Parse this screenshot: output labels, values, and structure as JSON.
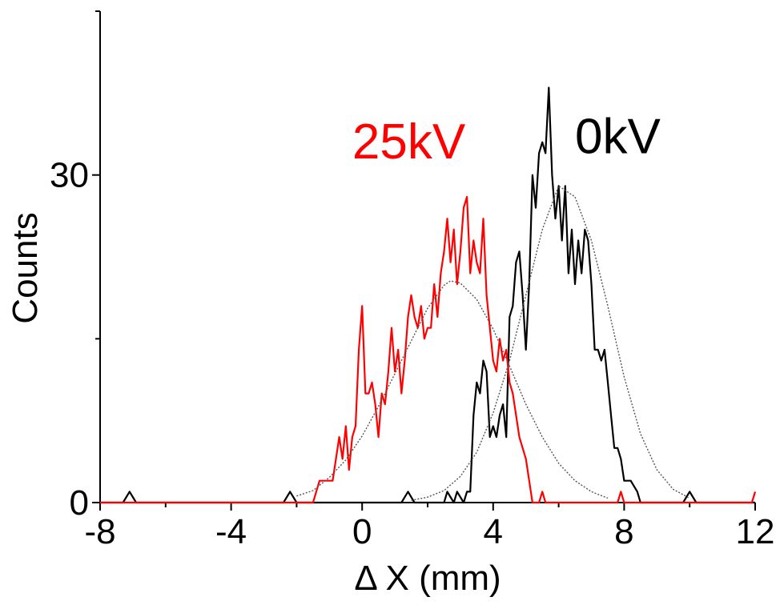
{
  "chart_data": {
    "type": "line",
    "title": "",
    "xlabel": "Δ X (mm)",
    "ylabel": "Counts",
    "xlim": [
      -8,
      12
    ],
    "ylim": [
      0,
      45
    ],
    "x_ticks": [
      -8,
      -4,
      0,
      4,
      8,
      12
    ],
    "y_ticks": [
      0,
      30
    ],
    "y_minor_ticks": [
      15,
      45
    ],
    "grid": false,
    "annotations": [
      {
        "text": "25kV",
        "color": "#ff0000",
        "x": -0.3,
        "y": 31.5
      },
      {
        "text": "0kV",
        "color": "#000000",
        "x": 6.5,
        "y": 32.0
      }
    ],
    "series": [
      {
        "color": "#000000",
        "style": "solid",
        "x": [
          -8.0,
          -7.3,
          -7.1,
          -6.9,
          -2.4,
          -2.2,
          -2.0,
          1.2,
          1.4,
          1.6,
          2.5,
          2.6,
          2.8,
          2.9,
          3.1,
          3.2,
          3.3,
          3.4,
          3.5,
          3.6,
          3.7,
          3.8,
          3.9,
          4.0,
          4.1,
          4.2,
          4.3,
          4.4,
          4.5,
          4.6,
          4.7,
          4.8,
          4.9,
          5.0,
          5.1,
          5.2,
          5.3,
          5.4,
          5.5,
          5.6,
          5.7,
          5.8,
          5.9,
          6.0,
          6.1,
          6.2,
          6.3,
          6.4,
          6.5,
          6.6,
          6.7,
          6.8,
          6.9,
          7.0,
          7.1,
          7.2,
          7.3,
          7.4,
          7.5,
          7.6,
          7.7,
          7.8,
          7.9,
          8.0,
          8.2,
          8.4,
          8.5,
          8.6,
          8.7,
          8.8,
          8.9,
          9.8,
          10.0,
          10.2,
          11.8,
          12.0
        ],
        "y": [
          0,
          0,
          1,
          0,
          0,
          1,
          0,
          0,
          1,
          0,
          0,
          1,
          0,
          1,
          0,
          1,
          1,
          8,
          11,
          10,
          13,
          12,
          6,
          7,
          6,
          8,
          9,
          6,
          17,
          18,
          22,
          23,
          19,
          14,
          20,
          30,
          27,
          32,
          33,
          32,
          38,
          30,
          26,
          29,
          24,
          29,
          21,
          25,
          20,
          24,
          21,
          25,
          24,
          20,
          14,
          14,
          13,
          14,
          11,
          8,
          5,
          5,
          4,
          2,
          2,
          1,
          0,
          0,
          0,
          0,
          0,
          0,
          1,
          0,
          0,
          0
        ]
      },
      {
        "color": "#ff0000",
        "style": "solid",
        "x": [
          -8.0,
          -1.6,
          -1.5,
          -1.4,
          -1.3,
          -1.2,
          -1.1,
          -1.0,
          -0.9,
          -0.8,
          -0.7,
          -0.6,
          -0.5,
          -0.4,
          -0.3,
          -0.2,
          -0.1,
          0.0,
          0.1,
          0.2,
          0.3,
          0.4,
          0.5,
          0.6,
          0.7,
          0.8,
          0.9,
          1.0,
          1.1,
          1.2,
          1.3,
          1.4,
          1.5,
          1.6,
          1.7,
          1.8,
          1.9,
          2.0,
          2.1,
          2.2,
          2.3,
          2.4,
          2.5,
          2.6,
          2.7,
          2.8,
          2.9,
          3.0,
          3.1,
          3.2,
          3.3,
          3.4,
          3.5,
          3.6,
          3.7,
          3.8,
          3.9,
          4.0,
          4.1,
          4.2,
          4.3,
          4.4,
          4.5,
          4.6,
          4.7,
          4.8,
          4.9,
          5.0,
          5.1,
          5.2,
          5.3,
          5.4,
          5.5,
          5.6,
          5.7,
          7.8,
          7.9,
          8.0,
          11.9,
          12.0
        ],
        "y": [
          0,
          0,
          0,
          1,
          2,
          2,
          2,
          2,
          2,
          4,
          6,
          4,
          7,
          3,
          6,
          7,
          14,
          18,
          10,
          10,
          11,
          9,
          6,
          10,
          9,
          12,
          16,
          12,
          14,
          10,
          13,
          17,
          19,
          17,
          16,
          18,
          15,
          16,
          16,
          20,
          17,
          21,
          23,
          26,
          22,
          25,
          20,
          23,
          27,
          28,
          21,
          24,
          22,
          21,
          26,
          19,
          16,
          13,
          12,
          15,
          13,
          14,
          11,
          10,
          8,
          6,
          5,
          4,
          2,
          0,
          0,
          0,
          1,
          0,
          0,
          0,
          1,
          0,
          0,
          1
        ]
      },
      {
        "color": "#555555",
        "style": "dotted",
        "x": [
          -2.0,
          -1.5,
          -1.0,
          -0.5,
          0.0,
          0.5,
          1.0,
          1.5,
          2.0,
          2.5,
          2.7,
          3.0,
          3.5,
          4.0,
          4.5,
          5.0,
          5.5,
          6.0,
          6.5,
          7.0,
          7.5
        ],
        "y": [
          0.6,
          1.1,
          2.3,
          3.9,
          6.1,
          8.8,
          11.8,
          14.8,
          17.8,
          19.9,
          20.3,
          20.1,
          18.6,
          15.9,
          12.5,
          9.0,
          6.0,
          3.6,
          2.0,
          1.0,
          0.4
        ]
      },
      {
        "color": "#555555",
        "style": "dotted",
        "x": [
          1.5,
          2.0,
          2.5,
          3.0,
          3.5,
          4.0,
          4.5,
          5.0,
          5.5,
          6.0,
          6.5,
          7.0,
          7.5,
          8.0,
          8.5,
          9.0,
          9.5,
          10.0
        ],
        "y": [
          0.2,
          0.5,
          1.1,
          2.4,
          4.6,
          8.2,
          13.0,
          19.0,
          25.0,
          29.0,
          28.0,
          24.0,
          18.0,
          11.5,
          6.3,
          3.0,
          1.2,
          0.4
        ]
      }
    ]
  }
}
